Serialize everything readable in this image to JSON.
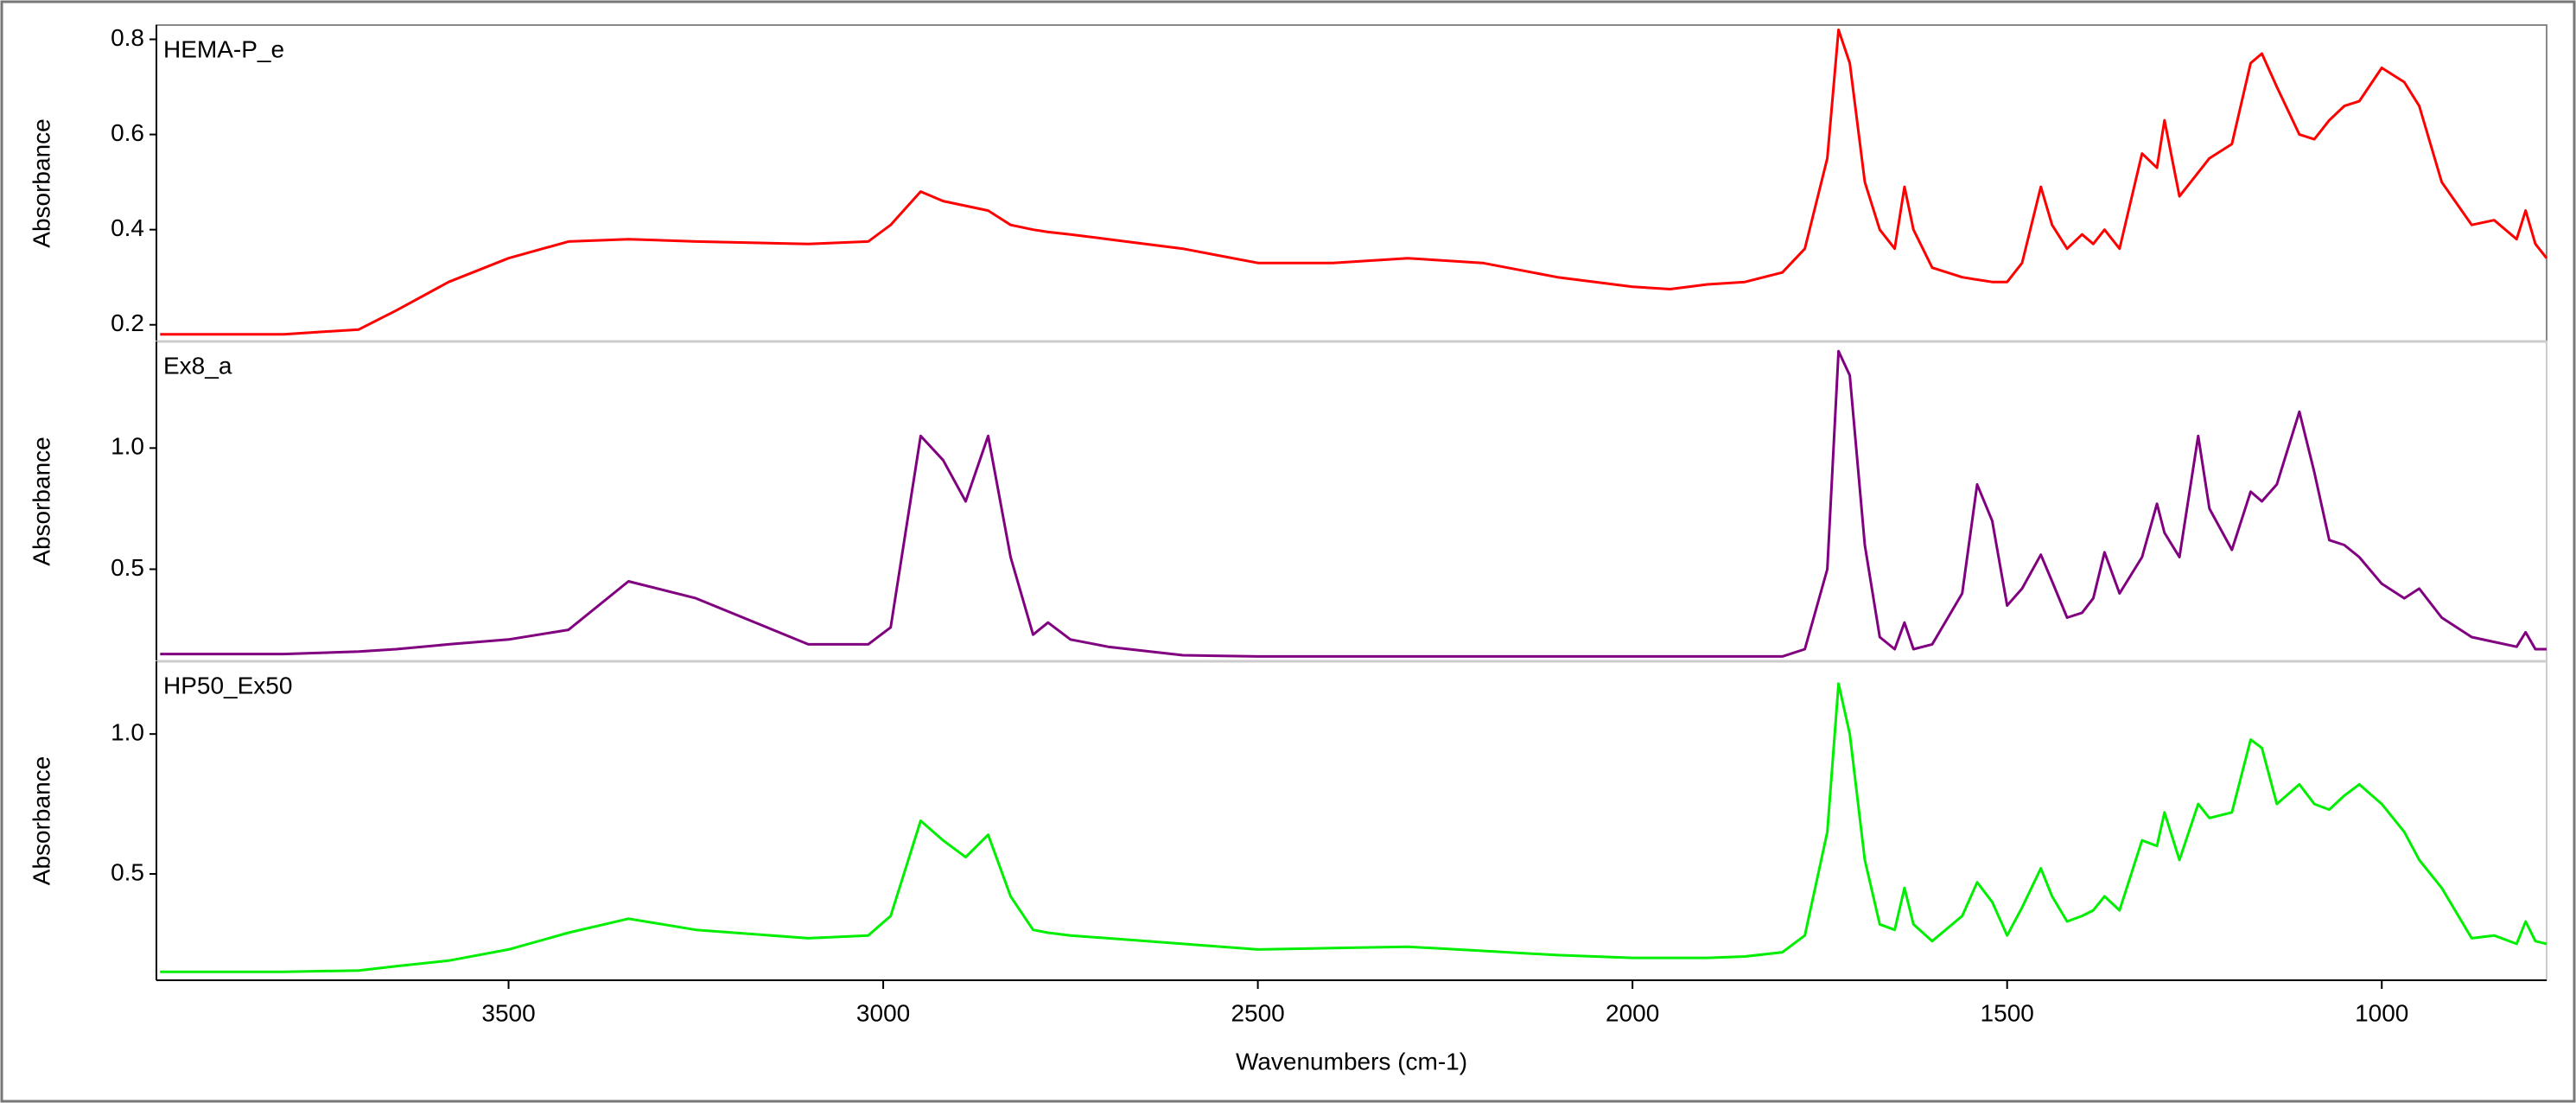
{
  "chart_data": [
    {
      "type": "line",
      "ylabel": "Absorbance",
      "x": [
        3965,
        3800,
        3700,
        3650,
        3580,
        3500,
        3420,
        3340,
        3250,
        3100,
        3020,
        2990,
        2950,
        2920,
        2890,
        2860,
        2830,
        2800,
        2780,
        2750,
        2700,
        2600,
        2500,
        2400,
        2300,
        2200,
        2100,
        2000,
        1950,
        1900,
        1850,
        1800,
        1770,
        1740,
        1725,
        1710,
        1690,
        1670,
        1650,
        1637,
        1625,
        1600,
        1560,
        1540,
        1520,
        1500,
        1480,
        1455,
        1440,
        1420,
        1400,
        1385,
        1370,
        1350,
        1320,
        1300,
        1290,
        1270,
        1245,
        1230,
        1200,
        1175,
        1160,
        1140,
        1110,
        1090,
        1070,
        1050,
        1030,
        1000,
        970,
        950,
        920,
        880,
        850,
        820,
        808,
        795,
        780
      ],
      "series": [
        {
          "name": "HEMA-P_e",
          "color": "#ff0000",
          "values": [
            0.18,
            0.18,
            0.19,
            0.23,
            0.29,
            0.34,
            0.375,
            0.38,
            0.375,
            0.37,
            0.375,
            0.41,
            0.48,
            0.46,
            0.45,
            0.44,
            0.41,
            0.4,
            0.395,
            0.39,
            0.38,
            0.36,
            0.33,
            0.33,
            0.34,
            0.33,
            0.3,
            0.28,
            0.275,
            0.285,
            0.29,
            0.31,
            0.36,
            0.55,
            0.82,
            0.75,
            0.5,
            0.4,
            0.36,
            0.49,
            0.4,
            0.32,
            0.3,
            0.295,
            0.29,
            0.29,
            0.33,
            0.49,
            0.41,
            0.36,
            0.39,
            0.37,
            0.4,
            0.36,
            0.56,
            0.53,
            0.63,
            0.47,
            0.52,
            0.55,
            0.58,
            0.75,
            0.77,
            0.7,
            0.6,
            0.59,
            0.63,
            0.66,
            0.67,
            0.74,
            0.71,
            0.66,
            0.5,
            0.41,
            0.42,
            0.38,
            0.44,
            0.37,
            0.34
          ]
        }
      ],
      "xlim": [
        3970,
        780
      ],
      "ylim": [
        0.165,
        0.83
      ],
      "yticks": [
        0.2,
        0.4,
        0.6,
        0.8
      ]
    },
    {
      "type": "line",
      "ylabel": "Absorbance",
      "x": [
        3965,
        3800,
        3700,
        3650,
        3580,
        3500,
        3420,
        3340,
        3250,
        3100,
        3020,
        2990,
        2950,
        2920,
        2890,
        2860,
        2830,
        2800,
        2780,
        2750,
        2700,
        2600,
        2500,
        2400,
        2300,
        2200,
        2100,
        2000,
        1950,
        1900,
        1850,
        1800,
        1770,
        1740,
        1725,
        1710,
        1690,
        1670,
        1650,
        1637,
        1625,
        1600,
        1560,
        1540,
        1520,
        1500,
        1480,
        1455,
        1440,
        1420,
        1400,
        1385,
        1370,
        1350,
        1320,
        1300,
        1290,
        1270,
        1245,
        1230,
        1200,
        1175,
        1160,
        1140,
        1110,
        1090,
        1070,
        1050,
        1030,
        1000,
        970,
        950,
        920,
        880,
        850,
        820,
        808,
        795,
        780
      ],
      "series": [
        {
          "name": "Ex8_a",
          "color": "#800080",
          "values": [
            0.15,
            0.15,
            0.16,
            0.17,
            0.19,
            0.21,
            0.25,
            0.45,
            0.38,
            0.19,
            0.19,
            0.26,
            1.05,
            0.95,
            0.78,
            1.05,
            0.55,
            0.23,
            0.28,
            0.21,
            0.18,
            0.145,
            0.14,
            0.14,
            0.14,
            0.14,
            0.14,
            0.14,
            0.14,
            0.14,
            0.14,
            0.14,
            0.17,
            0.5,
            1.4,
            1.3,
            0.6,
            0.22,
            0.17,
            0.28,
            0.17,
            0.19,
            0.4,
            0.85,
            0.7,
            0.35,
            0.42,
            0.56,
            0.45,
            0.3,
            0.32,
            0.38,
            0.57,
            0.4,
            0.55,
            0.77,
            0.65,
            0.55,
            1.05,
            0.75,
            0.58,
            0.82,
            0.78,
            0.85,
            1.15,
            0.9,
            0.62,
            0.6,
            0.55,
            0.44,
            0.38,
            0.42,
            0.3,
            0.22,
            0.2,
            0.18,
            0.24,
            0.17,
            0.17
          ]
        }
      ],
      "xlim": [
        3970,
        780
      ],
      "ylim": [
        0.12,
        1.44
      ],
      "yticks": [
        {
          "value": 1,
          "label": "1.0"
        },
        0.5
      ]
    },
    {
      "type": "line",
      "ylabel": "Absorbance",
      "xlabel": "Wavenumbers (cm-1)",
      "x": [
        3965,
        3800,
        3700,
        3650,
        3580,
        3500,
        3420,
        3340,
        3250,
        3100,
        3020,
        2990,
        2950,
        2920,
        2890,
        2860,
        2830,
        2800,
        2780,
        2750,
        2700,
        2600,
        2500,
        2400,
        2300,
        2200,
        2100,
        2000,
        1950,
        1900,
        1850,
        1800,
        1770,
        1740,
        1725,
        1710,
        1690,
        1670,
        1650,
        1637,
        1625,
        1600,
        1560,
        1540,
        1520,
        1500,
        1480,
        1455,
        1440,
        1420,
        1400,
        1385,
        1370,
        1350,
        1320,
        1300,
        1290,
        1270,
        1245,
        1230,
        1200,
        1175,
        1160,
        1140,
        1110,
        1090,
        1070,
        1050,
        1030,
        1000,
        970,
        950,
        920,
        880,
        850,
        820,
        808,
        795,
        780
      ],
      "series": [
        {
          "name": "HP50_Ex50",
          "color": "#00ee00",
          "values": [
            0.15,
            0.15,
            0.155,
            0.17,
            0.19,
            0.23,
            0.29,
            0.34,
            0.3,
            0.27,
            0.28,
            0.35,
            0.69,
            0.62,
            0.56,
            0.64,
            0.42,
            0.3,
            0.29,
            0.28,
            0.27,
            0.25,
            0.23,
            0.235,
            0.24,
            0.225,
            0.21,
            0.2,
            0.2,
            0.2,
            0.205,
            0.22,
            0.28,
            0.65,
            1.18,
            1.0,
            0.55,
            0.32,
            0.3,
            0.45,
            0.32,
            0.26,
            0.35,
            0.47,
            0.4,
            0.28,
            0.38,
            0.52,
            0.42,
            0.33,
            0.35,
            0.37,
            0.42,
            0.37,
            0.62,
            0.6,
            0.72,
            0.55,
            0.75,
            0.7,
            0.72,
            0.98,
            0.95,
            0.75,
            0.82,
            0.75,
            0.73,
            0.78,
            0.82,
            0.75,
            0.65,
            0.55,
            0.45,
            0.27,
            0.28,
            0.25,
            0.33,
            0.26,
            0.25
          ]
        }
      ],
      "xlim": [
        3970,
        780
      ],
      "ylim": [
        0.12,
        1.26
      ],
      "yticks": [
        {
          "value": 1,
          "label": "1.0"
        },
        0.5
      ],
      "xticks": [
        3500,
        3000,
        2500,
        2000,
        1500,
        1000
      ]
    }
  ]
}
